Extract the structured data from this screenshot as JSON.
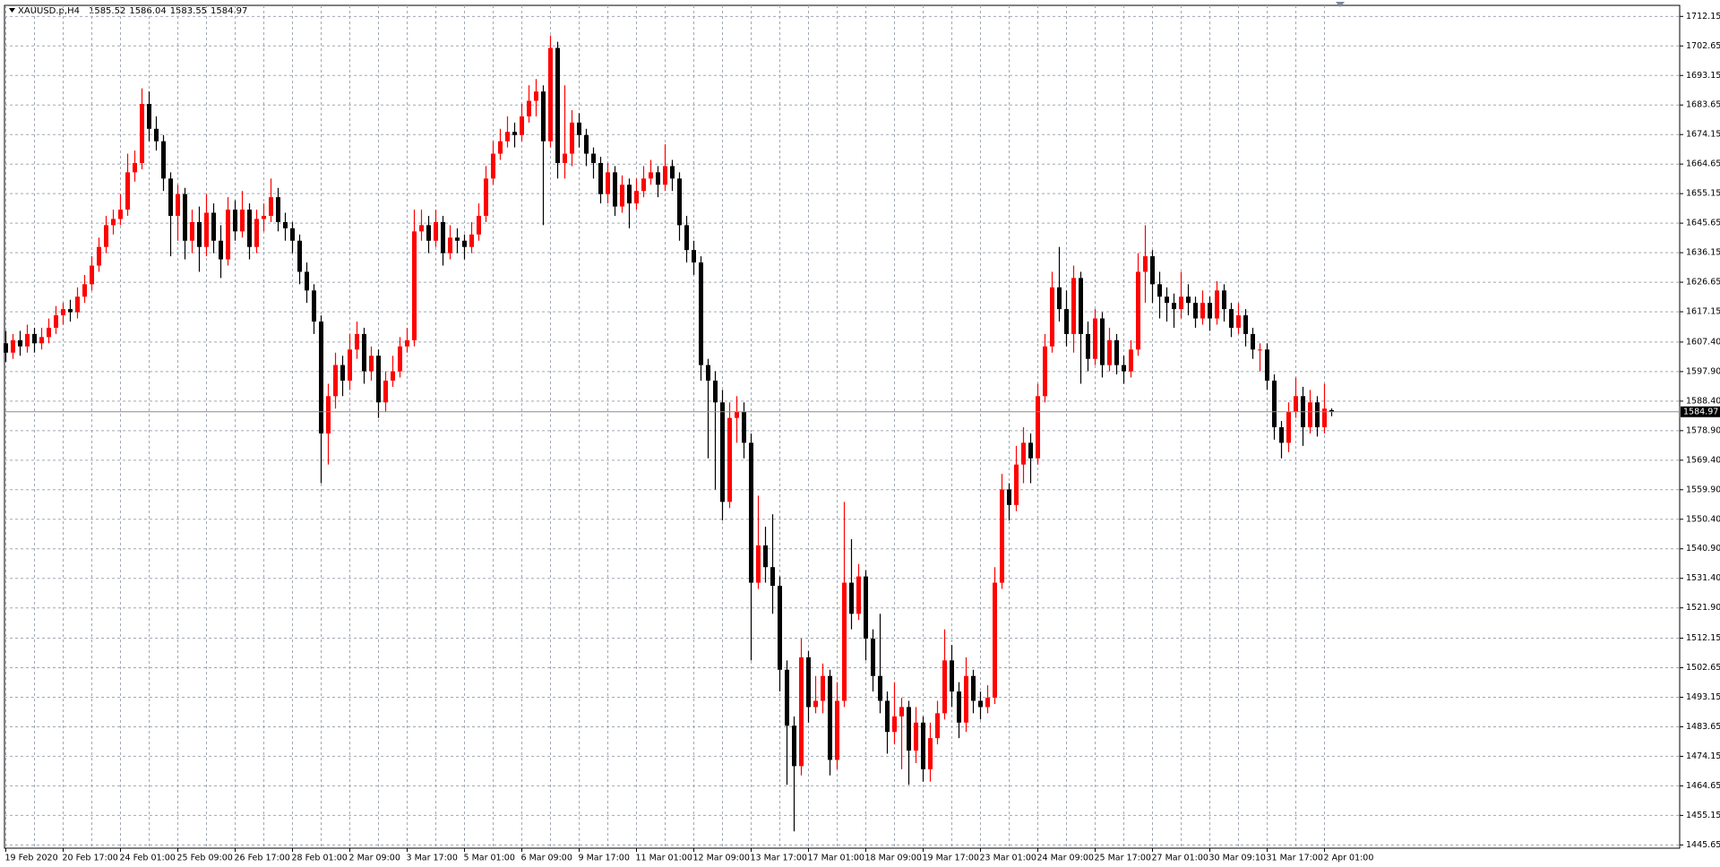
{
  "chart_data": {
    "type": "candlestick",
    "symbol": "XAUUSD.p,H4",
    "up_color": "#ff0000",
    "down_color": "#000000",
    "grid": true,
    "ylim": [
      1444.6,
      1715.7
    ],
    "yticks": [
      1712.15,
      1702.65,
      1693.15,
      1683.65,
      1674.15,
      1664.65,
      1655.15,
      1645.65,
      1636.15,
      1626.65,
      1617.15,
      {
        "value": 1607.4,
        "label": "1607.40"
      },
      {
        "value": 1597.9,
        "label": "1597.90"
      },
      {
        "value": 1588.4,
        "label": "1588.40"
      },
      {
        "value": 1578.9,
        "label": "1578.90"
      },
      {
        "value": 1569.4,
        "label": "1569.40"
      },
      {
        "value": 1559.9,
        "label": "1559.90"
      },
      {
        "value": 1550.4,
        "label": "1550.40"
      },
      {
        "value": 1540.9,
        "label": "1540.90"
      },
      {
        "value": 1531.4,
        "label": "1531.40"
      },
      {
        "value": 1521.9,
        "label": "1521.90"
      },
      1512.15,
      1502.65,
      1493.15,
      1483.65,
      1474.15,
      1464.65,
      1455.15,
      1445.65
    ],
    "categories": [
      "19 Feb 2020",
      null,
      null,
      null,
      null,
      null,
      null,
      null,
      "20 Feb 17:00",
      null,
      null,
      null,
      null,
      null,
      null,
      null,
      "24 Feb 01:00",
      null,
      null,
      null,
      null,
      null,
      null,
      null,
      "25 Feb 09:00",
      null,
      null,
      null,
      null,
      null,
      null,
      null,
      "26 Feb 17:00",
      null,
      null,
      null,
      null,
      null,
      null,
      null,
      "28 Feb 01:00",
      null,
      null,
      null,
      null,
      null,
      null,
      null,
      "2 Mar 09:00",
      null,
      null,
      null,
      null,
      null,
      null,
      null,
      "3 Mar 17:00",
      null,
      null,
      null,
      null,
      null,
      null,
      null,
      "5 Mar 01:00",
      null,
      null,
      null,
      null,
      null,
      null,
      null,
      "6 Mar 09:00",
      null,
      null,
      null,
      null,
      null,
      null,
      null,
      "9 Mar 17:00",
      null,
      null,
      null,
      null,
      null,
      null,
      null,
      "11 Mar 01:00",
      null,
      null,
      null,
      null,
      null,
      null,
      null,
      "12 Mar 09:00",
      null,
      null,
      null,
      null,
      null,
      null,
      null,
      "13 Mar 17:00",
      null,
      null,
      null,
      null,
      null,
      null,
      null,
      "17 Mar 01:00",
      null,
      null,
      null,
      null,
      null,
      null,
      null,
      "18 Mar 09:00",
      null,
      null,
      null,
      null,
      null,
      null,
      null,
      "19 Mar 17:00",
      null,
      null,
      null,
      null,
      null,
      null,
      null,
      "23 Mar 01:00",
      null,
      null,
      null,
      null,
      null,
      null,
      null,
      "24 Mar 09:00",
      null,
      null,
      null,
      null,
      null,
      null,
      null,
      "25 Mar 17:00",
      null,
      null,
      null,
      null,
      null,
      null,
      null,
      "27 Mar 01:00",
      null,
      null,
      null,
      null,
      null,
      null,
      null,
      "30 Mar 09:10",
      null,
      null,
      null,
      null,
      null,
      null,
      null,
      "31 Mar 17:00",
      null,
      null,
      null,
      null,
      null,
      null,
      null,
      "2 Apr 01:00",
      null
    ],
    "ohlc": [
      [
        1607,
        1611,
        1601,
        1604
      ],
      [
        1604,
        1610,
        1602,
        1608
      ],
      [
        1608,
        1611,
        1603,
        1606
      ],
      [
        1606,
        1613,
        1604,
        1610
      ],
      [
        1610,
        1612,
        1604,
        1607
      ],
      [
        1607,
        1612,
        1605,
        1609
      ],
      [
        1609,
        1615,
        1607,
        1612
      ],
      [
        1612,
        1619,
        1610,
        1616
      ],
      [
        1616,
        1620,
        1613,
        1618
      ],
      [
        1618,
        1621,
        1614,
        1617
      ],
      [
        1617,
        1625,
        1615,
        1622
      ],
      [
        1622,
        1629,
        1620,
        1626
      ],
      [
        1626,
        1635,
        1624,
        1632
      ],
      [
        1632,
        1641,
        1630,
        1638
      ],
      [
        1638,
        1648,
        1636,
        1645
      ],
      [
        1645,
        1650,
        1642,
        1647
      ],
      [
        1647,
        1655,
        1645,
        1650
      ],
      [
        1650,
        1668,
        1648,
        1662
      ],
      [
        1662,
        1669,
        1659,
        1665
      ],
      [
        1665,
        1689,
        1663,
        1684
      ],
      [
        1684,
        1688,
        1672,
        1676
      ],
      [
        1676,
        1680,
        1669,
        1672
      ],
      [
        1672,
        1674,
        1656,
        1660
      ],
      [
        1660,
        1662,
        1635,
        1648
      ],
      [
        1648,
        1658,
        1640,
        1655
      ],
      [
        1655,
        1657,
        1634,
        1640
      ],
      [
        1640,
        1650,
        1636,
        1646
      ],
      [
        1646,
        1651,
        1630,
        1638
      ],
      [
        1638,
        1655,
        1635,
        1649
      ],
      [
        1649,
        1652,
        1636,
        1640
      ],
      [
        1640,
        1645,
        1628,
        1634
      ],
      [
        1634,
        1654,
        1632,
        1650
      ],
      [
        1650,
        1653,
        1640,
        1643
      ],
      [
        1643,
        1656,
        1641,
        1650
      ],
      [
        1650,
        1652,
        1634,
        1638
      ],
      [
        1638,
        1650,
        1636,
        1647
      ],
      [
        1647,
        1652,
        1643,
        1648
      ],
      [
        1648,
        1660,
        1646,
        1654
      ],
      [
        1654,
        1657,
        1643,
        1646
      ],
      [
        1646,
        1649,
        1640,
        1644
      ],
      [
        1644,
        1646,
        1636,
        1640
      ],
      [
        1640,
        1642,
        1626,
        1630
      ],
      [
        1630,
        1633,
        1620,
        1624
      ],
      [
        1624,
        1626,
        1610,
        1614
      ],
      [
        1614,
        1616,
        1562,
        1578
      ],
      [
        1578,
        1594,
        1568,
        1590
      ],
      [
        1590,
        1604,
        1586,
        1600
      ],
      [
        1600,
        1603,
        1590,
        1595
      ],
      [
        1595,
        1610,
        1592,
        1605
      ],
      [
        1605,
        1614,
        1602,
        1610
      ],
      [
        1610,
        1612,
        1594,
        1598
      ],
      [
        1598,
        1606,
        1595,
        1603
      ],
      [
        1603,
        1605,
        1583,
        1588
      ],
      [
        1588,
        1598,
        1585,
        1595
      ],
      [
        1595,
        1603,
        1593,
        1598
      ],
      [
        1598,
        1609,
        1596,
        1606
      ],
      [
        1606,
        1612,
        1604,
        1608
      ],
      [
        1608,
        1650,
        1606,
        1643
      ],
      [
        1643,
        1650,
        1640,
        1645
      ],
      [
        1645,
        1648,
        1636,
        1640
      ],
      [
        1640,
        1650,
        1638,
        1646
      ],
      [
        1646,
        1648,
        1632,
        1636
      ],
      [
        1636,
        1645,
        1634,
        1641
      ],
      [
        1641,
        1644,
        1636,
        1640
      ],
      [
        1640,
        1642,
        1634,
        1638
      ],
      [
        1638,
        1646,
        1636,
        1642
      ],
      [
        1642,
        1652,
        1640,
        1648
      ],
      [
        1648,
        1664,
        1646,
        1660
      ],
      [
        1660,
        1672,
        1658,
        1668
      ],
      [
        1668,
        1676,
        1666,
        1672
      ],
      [
        1672,
        1680,
        1670,
        1675
      ],
      [
        1675,
        1678,
        1670,
        1674
      ],
      [
        1674,
        1684,
        1672,
        1680
      ],
      [
        1680,
        1690,
        1678,
        1685
      ],
      [
        1685,
        1692,
        1680,
        1688
      ],
      [
        1688,
        1690,
        1645,
        1672
      ],
      [
        1672,
        1706,
        1670,
        1702
      ],
      [
        1702,
        1704,
        1660,
        1665
      ],
      [
        1665,
        1690,
        1660,
        1668
      ],
      [
        1668,
        1682,
        1664,
        1678
      ],
      [
        1678,
        1681,
        1670,
        1674
      ],
      [
        1674,
        1676,
        1664,
        1668
      ],
      [
        1668,
        1670,
        1660,
        1665
      ],
      [
        1665,
        1667,
        1652,
        1655
      ],
      [
        1655,
        1665,
        1652,
        1662
      ],
      [
        1662,
        1664,
        1648,
        1651
      ],
      [
        1651,
        1661,
        1649,
        1658
      ],
      [
        1658,
        1660,
        1644,
        1652
      ],
      [
        1652,
        1660,
        1650,
        1656
      ],
      [
        1656,
        1664,
        1654,
        1660
      ],
      [
        1660,
        1666,
        1658,
        1662
      ],
      [
        1662,
        1664,
        1654,
        1658
      ],
      [
        1658,
        1671,
        1656,
        1664
      ],
      [
        1664,
        1666,
        1656,
        1660
      ],
      [
        1660,
        1662,
        1640,
        1645
      ],
      [
        1645,
        1648,
        1633,
        1637
      ],
      [
        1637,
        1640,
        1629,
        1633
      ],
      [
        1633,
        1635,
        1595,
        1600
      ],
      [
        1600,
        1602,
        1570,
        1595
      ],
      [
        1595,
        1598,
        1560,
        1588
      ],
      [
        1588,
        1592,
        1550,
        1556
      ],
      [
        1556,
        1588,
        1554,
        1583
      ],
      [
        1583,
        1590,
        1575,
        1585
      ],
      [
        1585,
        1588,
        1570,
        1575
      ],
      [
        1575,
        1578,
        1505,
        1530
      ],
      [
        1530,
        1558,
        1528,
        1542
      ],
      [
        1542,
        1548,
        1530,
        1535
      ],
      [
        1535,
        1552,
        1520,
        1529
      ],
      [
        1529,
        1532,
        1495,
        1502
      ],
      [
        1502,
        1505,
        1465,
        1484
      ],
      [
        1484,
        1487,
        1450,
        1471
      ],
      [
        1471,
        1512,
        1468,
        1506
      ],
      [
        1506,
        1508,
        1485,
        1490
      ],
      [
        1490,
        1500,
        1488,
        1492
      ],
      [
        1492,
        1504,
        1488,
        1500
      ],
      [
        1500,
        1502,
        1468,
        1473
      ],
      [
        1473,
        1498,
        1470,
        1492
      ],
      [
        1492,
        1556,
        1490,
        1530
      ],
      [
        1530,
        1544,
        1515,
        1520
      ],
      [
        1520,
        1536,
        1518,
        1532
      ],
      [
        1532,
        1534,
        1505,
        1512
      ],
      [
        1512,
        1515,
        1495,
        1500
      ],
      [
        1500,
        1520,
        1488,
        1492
      ],
      [
        1492,
        1495,
        1475,
        1482
      ],
      [
        1482,
        1498,
        1478,
        1487
      ],
      [
        1487,
        1493,
        1470,
        1490
      ],
      [
        1490,
        1492,
        1465,
        1476
      ],
      [
        1476,
        1490,
        1472,
        1485
      ],
      [
        1485,
        1487,
        1466,
        1470
      ],
      [
        1470,
        1485,
        1466,
        1480
      ],
      [
        1480,
        1492,
        1478,
        1488
      ],
      [
        1488,
        1515,
        1486,
        1505
      ],
      [
        1505,
        1510,
        1490,
        1495
      ],
      [
        1495,
        1498,
        1480,
        1485
      ],
      [
        1485,
        1506,
        1482,
        1500
      ],
      [
        1500,
        1502,
        1488,
        1492
      ],
      [
        1492,
        1495,
        1486,
        1490
      ],
      [
        1490,
        1497,
        1488,
        1493
      ],
      [
        1493,
        1535,
        1491,
        1530
      ],
      [
        1530,
        1565,
        1528,
        1560
      ],
      [
        1560,
        1562,
        1550,
        1555
      ],
      [
        1555,
        1574,
        1553,
        1568
      ],
      [
        1568,
        1580,
        1562,
        1575
      ],
      [
        1575,
        1578,
        1562,
        1570
      ],
      [
        1570,
        1594,
        1568,
        1590
      ],
      [
        1590,
        1610,
        1588,
        1606
      ],
      [
        1606,
        1630,
        1604,
        1625
      ],
      [
        1625,
        1638,
        1614,
        1618
      ],
      [
        1618,
        1624,
        1606,
        1610
      ],
      [
        1610,
        1632,
        1604,
        1628
      ],
      [
        1628,
        1630,
        1594,
        1610
      ],
      [
        1610,
        1614,
        1598,
        1602
      ],
      [
        1602,
        1618,
        1600,
        1615
      ],
      [
        1615,
        1617,
        1596,
        1600
      ],
      [
        1600,
        1612,
        1598,
        1608
      ],
      [
        1608,
        1610,
        1597,
        1600
      ],
      [
        1600,
        1603,
        1594,
        1598
      ],
      [
        1598,
        1608,
        1596,
        1605
      ],
      [
        1605,
        1636,
        1603,
        1630
      ],
      [
        1630,
        1645,
        1620,
        1635
      ],
      [
        1635,
        1637,
        1620,
        1626
      ],
      [
        1626,
        1630,
        1615,
        1622
      ],
      [
        1622,
        1625,
        1614,
        1620
      ],
      [
        1620,
        1623,
        1612,
        1618
      ],
      [
        1618,
        1630,
        1615,
        1622
      ],
      [
        1622,
        1626,
        1616,
        1620
      ],
      [
        1620,
        1622,
        1612,
        1615
      ],
      [
        1615,
        1624,
        1613,
        1620
      ],
      [
        1620,
        1622,
        1611,
        1615
      ],
      [
        1615,
        1627,
        1613,
        1624
      ],
      [
        1624,
        1626,
        1614,
        1618
      ],
      [
        1618,
        1620,
        1609,
        1612
      ],
      [
        1612,
        1620,
        1610,
        1616
      ],
      [
        1616,
        1618,
        1606,
        1610
      ],
      [
        1610,
        1612,
        1602,
        1605
      ],
      [
        1605,
        1607,
        1598,
        1605
      ],
      [
        1605,
        1607,
        1592,
        1595
      ],
      [
        1595,
        1597,
        1576,
        1580
      ],
      [
        1580,
        1582,
        1570,
        1575
      ],
      [
        1575,
        1588,
        1572,
        1585
      ],
      [
        1585,
        1596,
        1583,
        1590
      ],
      [
        1590,
        1593,
        1574,
        1580
      ],
      [
        1580,
        1592,
        1578,
        1588
      ],
      [
        1588,
        1590,
        1577,
        1580
      ],
      [
        1580,
        1594,
        1578,
        1586
      ],
      [
        1585.52,
        1586.04,
        1583.55,
        1584.97
      ]
    ]
  }
}
